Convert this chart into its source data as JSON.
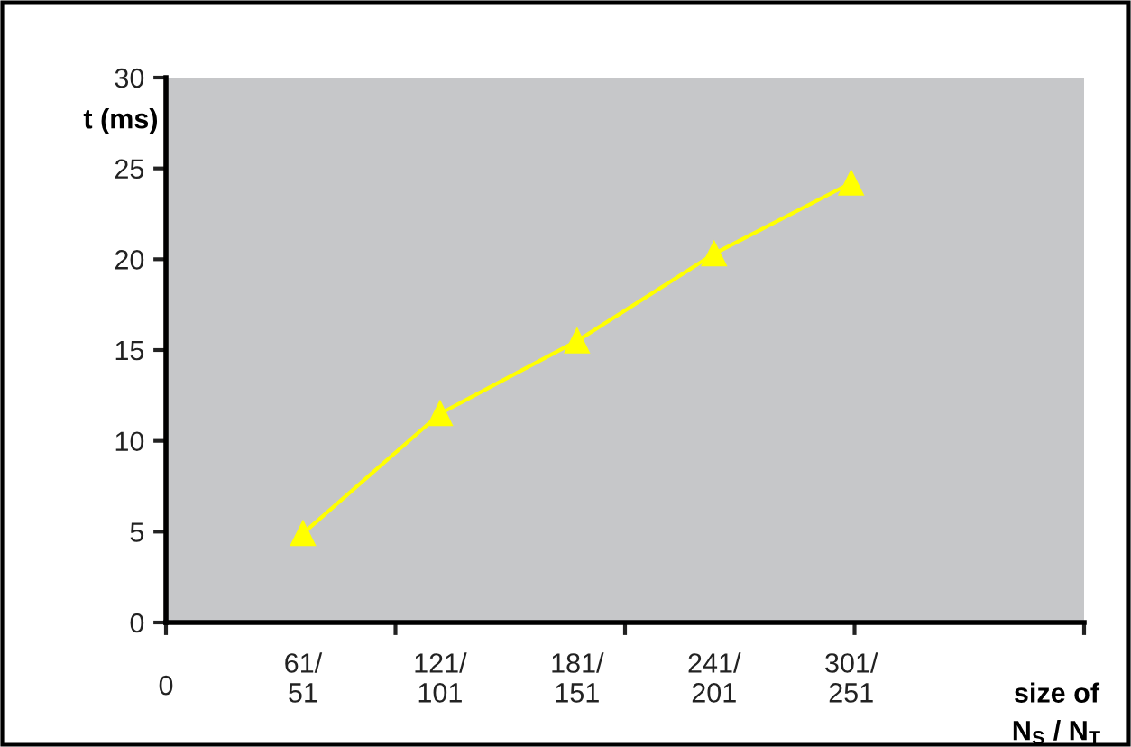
{
  "chart_data": {
    "type": "line",
    "ylabel": "t (ms)",
    "xlabel": "size of\nN$_{S}$ / N$_{T}$",
    "categories": [
      "61/\n51",
      "121/\n101",
      "181/\n151",
      "241/\n201",
      "301/\n251"
    ],
    "annotations": [
      "0"
    ],
    "series": [
      {
        "color": "#ffff00",
        "values": [
          4.9,
          11.5,
          15.5,
          20.3,
          24.2
        ]
      }
    ],
    "ylim": [
      0,
      30
    ],
    "yticks": [
      0,
      5,
      10,
      15,
      20,
      25,
      30
    ],
    "marker": "triangle",
    "line_style": "solid",
    "grid": false,
    "legend": false
  }
}
